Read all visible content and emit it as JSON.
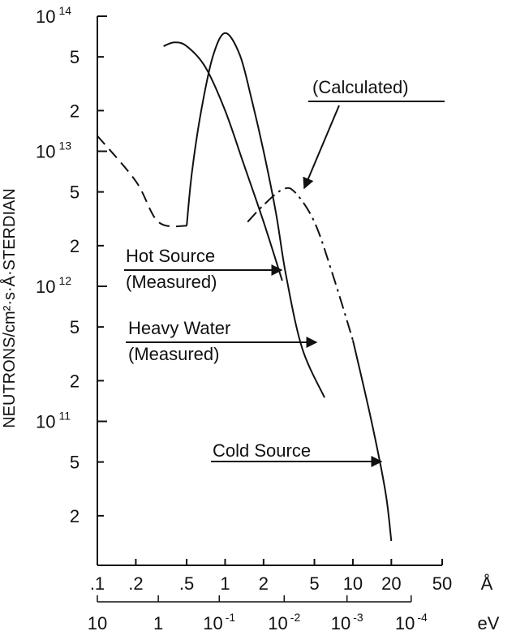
{
  "chart_data": {
    "type": "line",
    "title": "",
    "xlabel": "",
    "ylabel": "NEUTRONS/cm²·s·Å·STERDIAN",
    "x_unit": "Å",
    "x_scale": "log",
    "y_scale": "log",
    "xlim": [
      0.1,
      50
    ],
    "ylim": [
      1,
      100000000000000
    ],
    "grid": false,
    "legend": "none",
    "x_ticks": [
      {
        "value": 0.1,
        "label": ".1"
      },
      {
        "value": 0.2,
        "label": ".2"
      },
      {
        "value": 0.5,
        "label": ".5"
      },
      {
        "value": 1,
        "label": "1"
      },
      {
        "value": 2,
        "label": "2"
      },
      {
        "value": 5,
        "label": "5"
      },
      {
        "value": 10,
        "label": "10"
      },
      {
        "value": 20,
        "label": "20"
      },
      {
        "value": 50,
        "label": "50"
      }
    ],
    "y_ticks": [
      {
        "value": 100000000000000,
        "base": "10",
        "exp": "14"
      },
      {
        "value": 50000000000000,
        "base": "5",
        "exp": ""
      },
      {
        "value": 20000000000000,
        "base": "2",
        "exp": ""
      },
      {
        "value": 10000000000000,
        "base": "10",
        "exp": "13"
      },
      {
        "value": 5000000000000,
        "base": "5",
        "exp": ""
      },
      {
        "value": 2000000000000,
        "base": "2",
        "exp": ""
      },
      {
        "value": 1000000000000,
        "base": "10",
        "exp": "12"
      },
      {
        "value": 500000000000,
        "base": "5",
        "exp": ""
      },
      {
        "value": 200000000000,
        "base": "2",
        "exp": ""
      },
      {
        "value": 100000000000,
        "base": "10",
        "exp": "11"
      },
      {
        "value": 50000000000,
        "base": "5",
        "exp": ""
      },
      {
        "value": 20000000000,
        "base": "2",
        "exp": ""
      }
    ],
    "secondary_axis": {
      "unit": "eV",
      "ticks": [
        {
          "wavelength": 0.1,
          "base": "10",
          "exp": ""
        },
        {
          "wavelength": 0.3,
          "base": "1",
          "exp": ""
        },
        {
          "wavelength": 0.9,
          "base": "10",
          "exp": "-1"
        },
        {
          "wavelength": 2.9,
          "base": "10",
          "exp": "-2"
        },
        {
          "wavelength": 9,
          "base": "10",
          "exp": "-3"
        },
        {
          "wavelength": 28.6,
          "base": "10",
          "exp": "-4"
        }
      ]
    },
    "series": [
      {
        "name": "Hot Source (Measured)",
        "style": "solid",
        "points": [
          [
            0.1,
            13000000000000
          ],
          [
            0.2,
            6000000000000
          ],
          [
            0.3,
            3000000000000
          ],
          [
            0.5,
            2800000000000
          ],
          [
            0.55,
            7000000000000
          ],
          [
            0.65,
            20000000000000
          ],
          [
            0.8,
            50000000000000
          ],
          [
            1.0,
            75000000000000
          ],
          [
            1.3,
            52000000000000
          ],
          [
            1.6,
            25000000000000
          ],
          [
            2.0,
            10000000000000
          ],
          [
            2.5,
            3500000000000
          ],
          [
            3.0,
            1200000000000
          ],
          [
            4.0,
            350000000000
          ],
          [
            6.0,
            150000000000
          ]
        ]
      },
      {
        "name": "Heavy Water (Measured)",
        "style": "solid",
        "points": [
          [
            0.33,
            60000000000000
          ],
          [
            0.4,
            64000000000000
          ],
          [
            0.5,
            60000000000000
          ],
          [
            0.7,
            42000000000000
          ],
          [
            1.0,
            20000000000000
          ],
          [
            1.4,
            8000000000000
          ],
          [
            2.0,
            3000000000000
          ],
          [
            2.8,
            1100000000000
          ]
        ]
      },
      {
        "name": "Cold Source (Calculated)",
        "style": "dash-dot",
        "points": [
          [
            1.5,
            3000000000000
          ],
          [
            2.0,
            4000000000000
          ],
          [
            2.8,
            5200000000000
          ],
          [
            3.5,
            5000000000000
          ],
          [
            5.0,
            3000000000000
          ],
          [
            7.0,
            1200000000000
          ],
          [
            10.0,
            400000000000
          ],
          [
            14.0,
            100000000000
          ],
          [
            18.0,
            30000000000
          ],
          [
            20.0,
            13000000000
          ]
        ]
      }
    ],
    "annotations": [
      {
        "id": "hot-source",
        "lines": [
          "Hot Source",
          "(Measured)"
        ]
      },
      {
        "id": "heavy-water",
        "lines": [
          "Heavy Water",
          "(Measured)"
        ]
      },
      {
        "id": "cold-source",
        "lines": [
          "Cold Source"
        ]
      },
      {
        "id": "calculated",
        "lines": [
          "(Calculated)"
        ]
      }
    ]
  }
}
